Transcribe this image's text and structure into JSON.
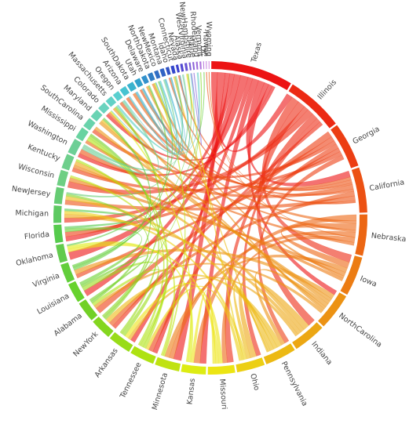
{
  "chart_data": {
    "type": "chord",
    "categories": [
      "Texas",
      "Illinois",
      "Georgia",
      "California",
      "Nebraska",
      "Iowa",
      "NorthCarolina",
      "Indiana",
      "Pennsylvania",
      "Ohio",
      "Missouri",
      "Kansas",
      "Minnesota",
      "Tennessee",
      "Arkansas",
      "NewYork",
      "Alabama",
      "Louisiana",
      "Virginia",
      "Oklahoma",
      "Florida",
      "Michigan",
      "NewJersey",
      "Wisconsin",
      "Kentucky",
      "Washington",
      "Mississippi",
      "SouthCarolina",
      "Maryland",
      "Colorado",
      "Massachusetts",
      "Oregon",
      "Arizona",
      "SouthDakota",
      "Utah",
      "Delaware",
      "NorthDakota",
      "NewMexico",
      "Montana",
      "Idaho",
      "Connecticut",
      "Nevada",
      "Alaska",
      "WestVirginia",
      "NewHampshire",
      "Maine",
      "RhodeIsland",
      "Vermont",
      "DC",
      "Hawaii",
      "Wyoming"
    ],
    "values": [
      100,
      70,
      55,
      55,
      50,
      48,
      45,
      40,
      38,
      34,
      33,
      30,
      30,
      30,
      28,
      26,
      25,
      24,
      23,
      22,
      22,
      21,
      20,
      19,
      18,
      18,
      14,
      12,
      11,
      10,
      9,
      8,
      8,
      8,
      7,
      6,
      6,
      5,
      5,
      4,
      4,
      3,
      3,
      3,
      2,
      2,
      2,
      2,
      1,
      1,
      1
    ],
    "colors": [
      "hsl(0,85%,50%)",
      "hsl(6,85%,50%)",
      "hsl(12,85%,50%)",
      "hsl(17,85%,50%)",
      "hsl(23,85%,50%)",
      "hsl(29,85%,50%)",
      "hsl(35,85%,50%)",
      "hsl(41,85%,50%)",
      "hsl(46,85%,50%)",
      "hsl(52,85%,50%)",
      "hsl(58,85%,50%)",
      "hsl(64,85%,50%)",
      "hsl(70,85%,48%)",
      "hsl(75,85%,48%)",
      "hsl(81,80%,48%)",
      "hsl(87,75%,48%)",
      "hsl(93,70%,48%)",
      "hsl(99,65%,50%)",
      "hsl(104,60%,52%)",
      "hsl(110,55%,55%)",
      "hsl(116,55%,55%)",
      "hsl(122,50%,58%)",
      "hsl(128,50%,60%)",
      "hsl(133,50%,62%)",
      "hsl(139,50%,62%)",
      "hsl(145,50%,62%)",
      "hsl(151,55%,62%)",
      "hsl(157,55%,62%)",
      "hsl(162,55%,62%)",
      "hsl(168,55%,62%)",
      "hsl(174,55%,60%)",
      "hsl(180,55%,58%)",
      "hsl(186,60%,55%)",
      "hsl(191,60%,52%)",
      "hsl(197,60%,50%)",
      "hsl(203,60%,50%)",
      "hsl(209,60%,48%)",
      "hsl(215,60%,48%)",
      "hsl(220,60%,48%)",
      "hsl(226,60%,48%)",
      "hsl(232,60%,50%)",
      "hsl(238,60%,52%)",
      "hsl(244,60%,55%)",
      "hsl(249,60%,58%)",
      "hsl(255,60%,60%)",
      "hsl(261,60%,62%)",
      "hsl(267,60%,64%)",
      "hsl(273,60%,66%)",
      "hsl(278,60%,68%)",
      "hsl(284,60%,70%)",
      "hsl(290,60%,72%)"
    ],
    "flows": [
      [
        "Texas",
        "Illinois",
        8
      ],
      [
        "Texas",
        "Minnesota",
        10
      ],
      [
        "Texas",
        "Tennessee",
        6
      ],
      [
        "Texas",
        "Florida",
        6
      ],
      [
        "Texas",
        "Louisiana",
        8
      ],
      [
        "Texas",
        "Oklahoma",
        10
      ],
      [
        "Texas",
        "Arkansas",
        6
      ],
      [
        "Texas",
        "Kansas",
        8
      ],
      [
        "Texas",
        "California",
        8
      ],
      [
        "Texas",
        "NorthCarolina",
        6
      ],
      [
        "Texas",
        "Washington",
        5
      ],
      [
        "Texas",
        "Colorado",
        4
      ],
      [
        "Illinois",
        "Iowa",
        10
      ],
      [
        "Illinois",
        "Indiana",
        10
      ],
      [
        "Illinois",
        "Michigan",
        6
      ],
      [
        "Illinois",
        "Wisconsin",
        8
      ],
      [
        "Illinois",
        "Missouri",
        8
      ],
      [
        "Illinois",
        "Ohio",
        6
      ],
      [
        "Illinois",
        "NewYork",
        5
      ],
      [
        "Georgia",
        "Alabama",
        8
      ],
      [
        "Georgia",
        "Florida",
        6
      ],
      [
        "Georgia",
        "SouthCarolina",
        5
      ],
      [
        "Georgia",
        "Tennessee",
        6
      ],
      [
        "Georgia",
        "Virginia",
        5
      ],
      [
        "Georgia",
        "Kentucky",
        5
      ],
      [
        "Georgia",
        "Pennsylvania",
        6
      ],
      [
        "California",
        "Oregon",
        4
      ],
      [
        "California",
        "Arizona",
        4
      ],
      [
        "California",
        "Nevada",
        2
      ],
      [
        "California",
        "Washington",
        6
      ],
      [
        "California",
        "Utah",
        3
      ],
      [
        "California",
        "NewYork",
        6
      ],
      [
        "California",
        "NewJersey",
        6
      ],
      [
        "California",
        "Idaho",
        2
      ],
      [
        "California",
        "Hawaii",
        1
      ],
      [
        "Nebraska",
        "Kansas",
        8
      ],
      [
        "Nebraska",
        "SouthDakota",
        4
      ],
      [
        "Nebraska",
        "Iowa",
        8
      ],
      [
        "Nebraska",
        "Colorado",
        3
      ],
      [
        "Nebraska",
        "Minnesota",
        6
      ],
      [
        "Nebraska",
        "Wyoming",
        1
      ],
      [
        "Nebraska",
        "Missouri",
        6
      ],
      [
        "Nebraska",
        "Mississippi",
        4
      ],
      [
        "Iowa",
        "Minnesota",
        6
      ],
      [
        "Iowa",
        "Wisconsin",
        5
      ],
      [
        "Iowa",
        "NorthDakota",
        3
      ],
      [
        "Iowa",
        "Kentucky",
        4
      ],
      [
        "NorthCarolina",
        "Virginia",
        6
      ],
      [
        "NorthCarolina",
        "SouthCarolina",
        4
      ],
      [
        "NorthCarolina",
        "Maryland",
        4
      ],
      [
        "NorthCarolina",
        "Pennsylvania",
        5
      ],
      [
        "NorthCarolina",
        "Massachusetts",
        3
      ],
      [
        "NorthCarolina",
        "Delaware",
        3
      ],
      [
        "NorthCarolina",
        "Alabama",
        4
      ],
      [
        "Indiana",
        "Ohio",
        8
      ],
      [
        "Indiana",
        "Kentucky",
        5
      ],
      [
        "Indiana",
        "Michigan",
        5
      ],
      [
        "Indiana",
        "Arkansas",
        4
      ],
      [
        "Pennsylvania",
        "NewYork",
        6
      ],
      [
        "Pennsylvania",
        "NewJersey",
        5
      ],
      [
        "Pennsylvania",
        "Ohio",
        5
      ],
      [
        "Pennsylvania",
        "Maryland",
        3
      ],
      [
        "Pennsylvania",
        "Connecticut",
        2
      ],
      [
        "Ohio",
        "Michigan",
        4
      ],
      [
        "Ohio",
        "WestVirginia",
        2
      ],
      [
        "Ohio",
        "Tennessee",
        4
      ],
      [
        "Missouri",
        "Arkansas",
        5
      ],
      [
        "Missouri",
        "Oklahoma",
        4
      ],
      [
        "Missouri",
        "Kansas",
        4
      ],
      [
        "Kansas",
        "Oklahoma",
        4
      ],
      [
        "Kansas",
        "Colorado",
        2
      ],
      [
        "Minnesota",
        "NorthDakota",
        2
      ],
      [
        "Minnesota",
        "Wisconsin",
        3
      ],
      [
        "Tennessee",
        "Mississippi",
        4
      ],
      [
        "Tennessee",
        "Alabama",
        4
      ],
      [
        "Tennessee",
        "Kentucky",
        3
      ],
      [
        "Arkansas",
        "Louisiana",
        5
      ],
      [
        "Arkansas",
        "Mississippi",
        3
      ],
      [
        "NewYork",
        "Massachusetts",
        3
      ],
      [
        "NewYork",
        "Vermont",
        1
      ],
      [
        "NewYork",
        "NewJersey",
        3
      ],
      [
        "Alabama",
        "Mississippi",
        3
      ],
      [
        "Alabama",
        "Louisiana",
        3
      ],
      [
        "Louisiana",
        "Florida",
        4
      ],
      [
        "Virginia",
        "Maryland",
        3
      ],
      [
        "Virginia",
        "WestVirginia",
        1
      ],
      [
        "Virginia",
        "DC",
        1
      ],
      [
        "Virginia",
        "Delaware",
        2
      ],
      [
        "Oklahoma",
        "NewMexico",
        2
      ],
      [
        "Florida",
        "Michigan",
        3
      ],
      [
        "NewJersey",
        "Connecticut",
        2
      ],
      [
        "Washington",
        "Oregon",
        3
      ],
      [
        "Washington",
        "Alaska",
        2
      ],
      [
        "Washington",
        "Montana",
        2
      ],
      [
        "Colorado",
        "Utah",
        1
      ],
      [
        "Massachusetts",
        "RhodeIsland",
        2
      ],
      [
        "Massachusetts",
        "NewHampshire",
        1
      ],
      [
        "Oregon",
        "Idaho",
        1
      ],
      [
        "Arizona",
        "NewMexico",
        2
      ],
      [
        "SouthDakota",
        "NorthDakota",
        1
      ],
      [
        "SouthDakota",
        "Montana",
        2
      ],
      [
        "Utah",
        "Idaho",
        1
      ],
      [
        "Utah",
        "Nevada",
        1
      ],
      [
        "NewHampshire",
        "Maine",
        1
      ]
    ]
  }
}
